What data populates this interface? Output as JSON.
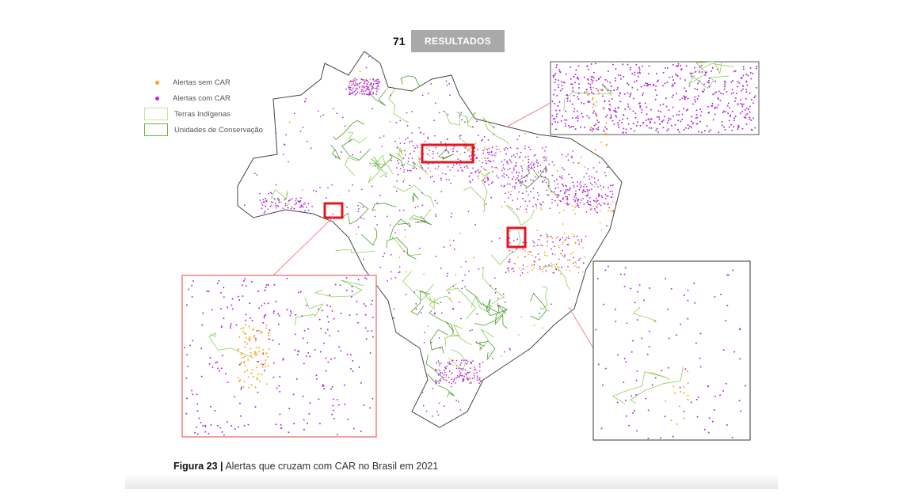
{
  "header": {
    "page_number": "71",
    "section": "RESULTADOS"
  },
  "legend": {
    "items": [
      {
        "label": "Alertas sem CAR",
        "color": "#f5a623"
      },
      {
        "label": "Alertas com CAR",
        "color": "#b02de0"
      },
      {
        "label": "Terras Indígenas",
        "color": "#c5e3a0"
      },
      {
        "label": "Unidades de Conservação",
        "color": "#6fae45"
      }
    ]
  },
  "caption": {
    "label": "Figura 23 |",
    "text": "Alertas que cruzam com CAR no Brasil em 2021"
  },
  "colors": {
    "highlight": "#e8141c",
    "border": "#333333"
  }
}
